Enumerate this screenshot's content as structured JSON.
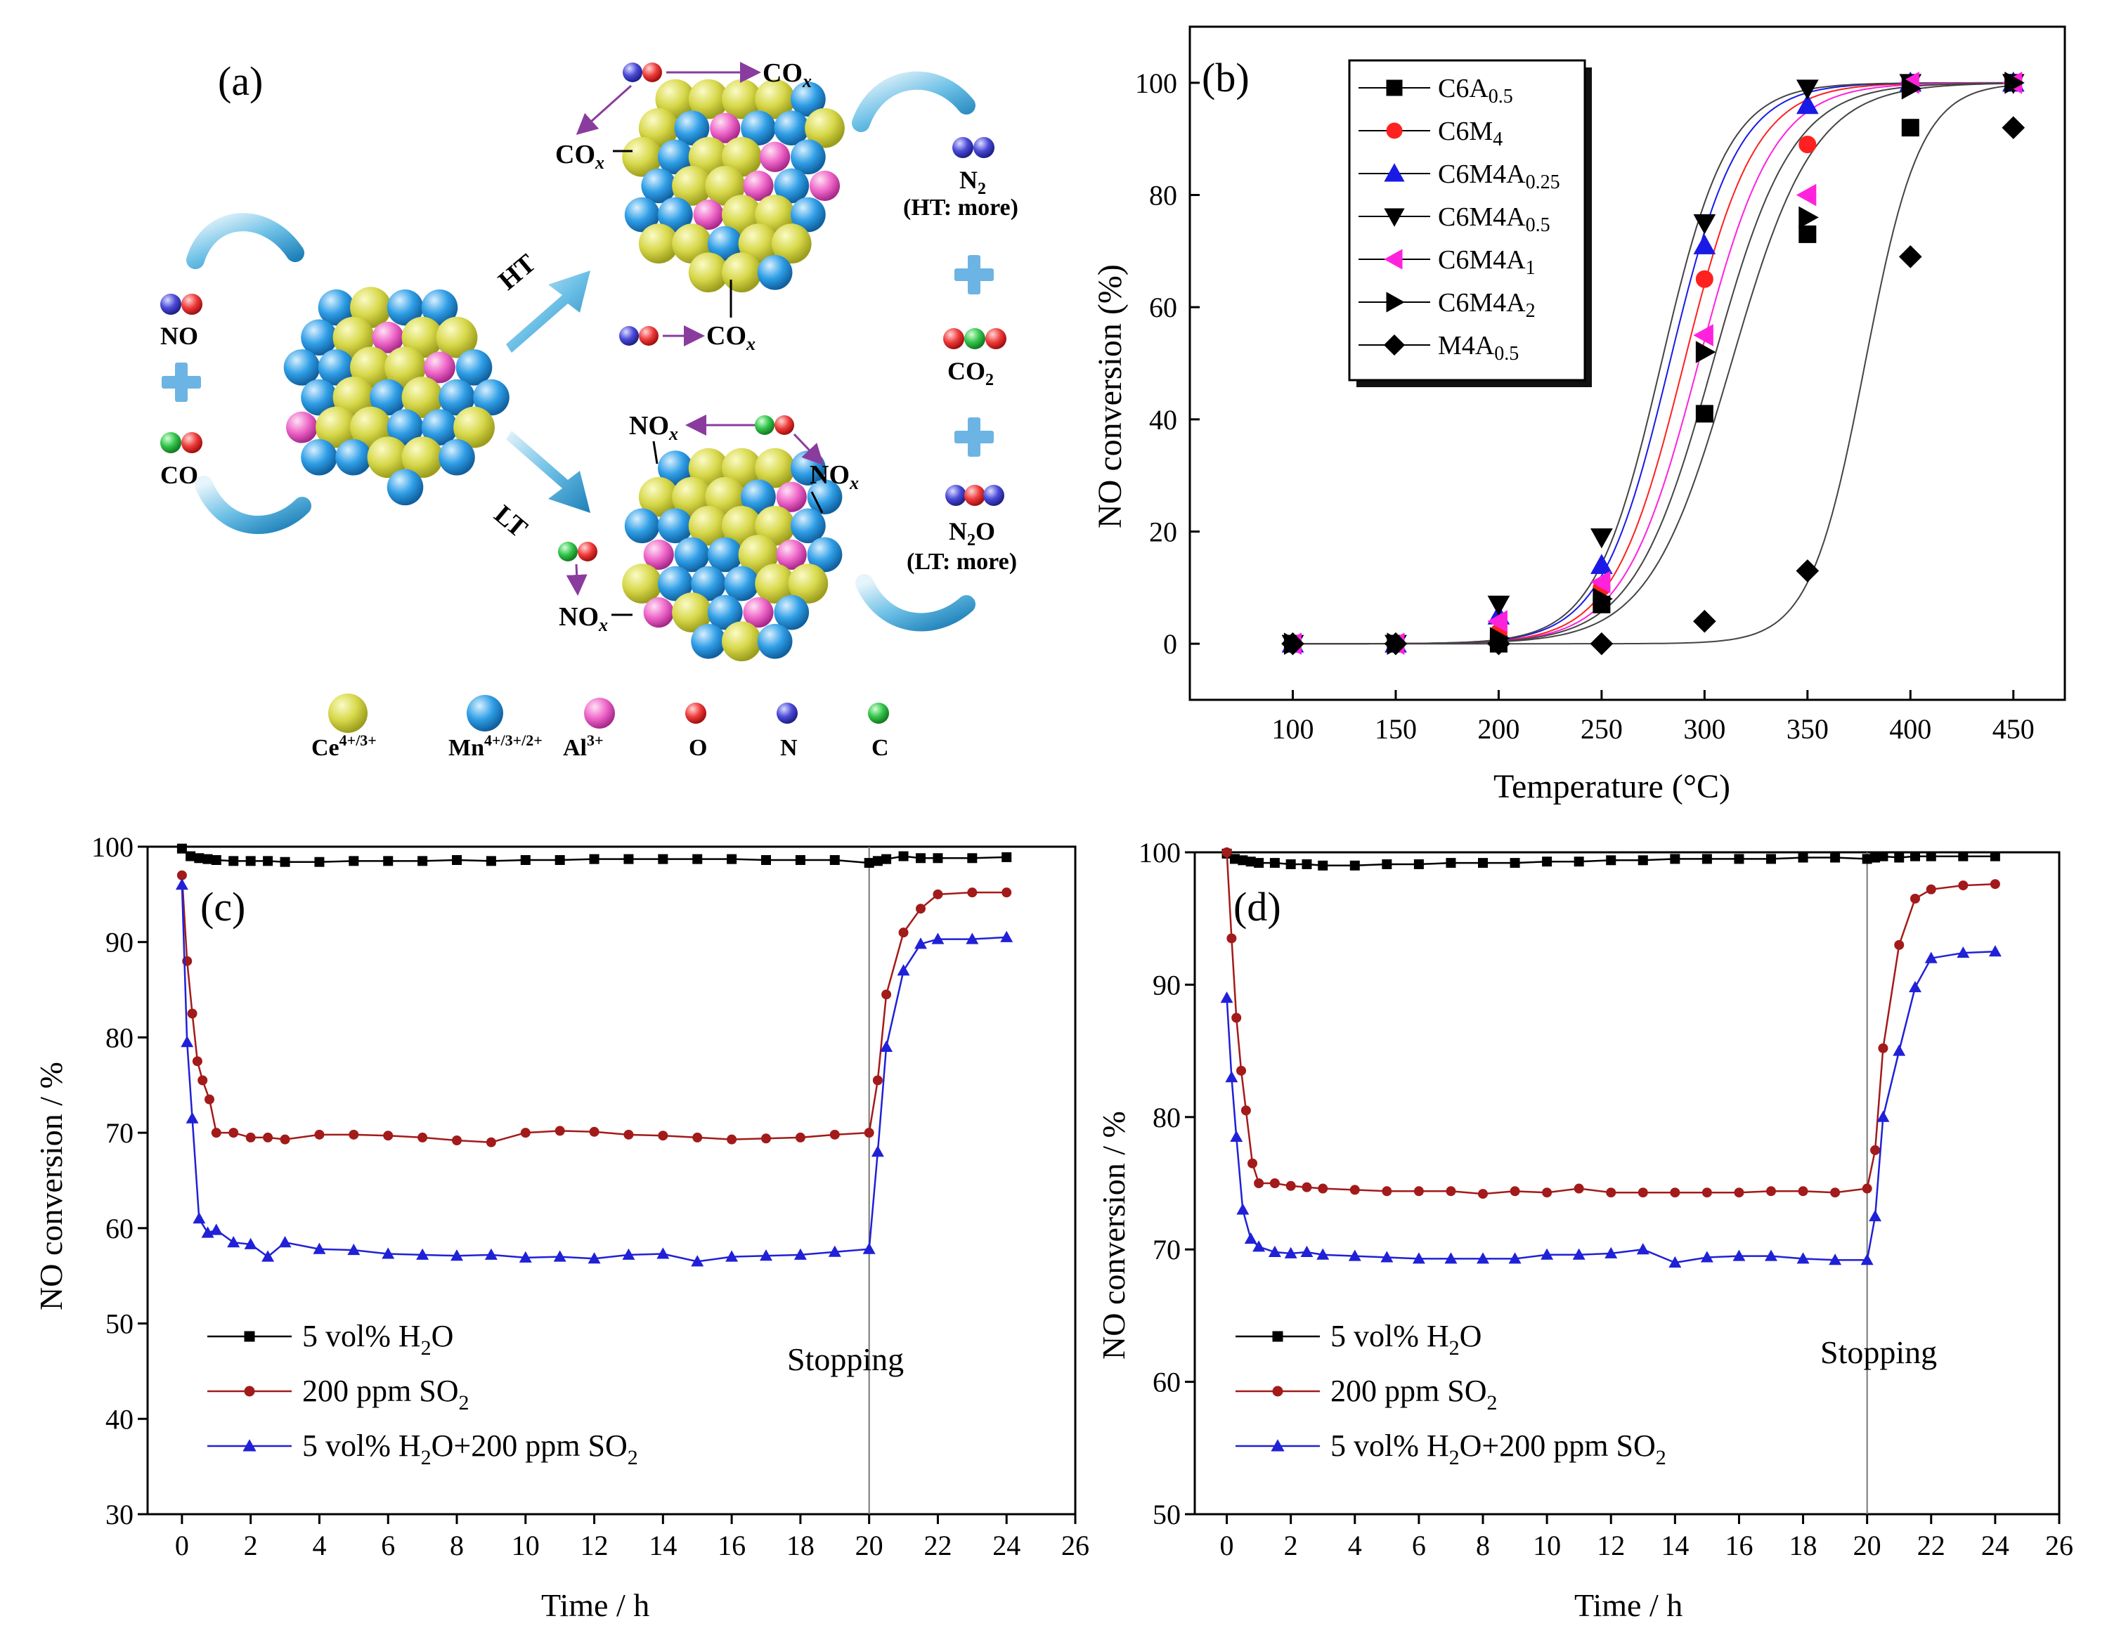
{
  "panel_a": {
    "label": "(a)",
    "reactants": {
      "no": "NO",
      "co": "CO"
    },
    "paths": {
      "ht": "HT",
      "lt": "LT"
    },
    "ht_products": {
      "cox": "CO",
      "sub": "x"
    },
    "lt_products": {
      "nox": "NO",
      "sub": "x"
    },
    "right": {
      "n2": "N",
      "n2_sub": "2",
      "n2_note": "(HT: more)",
      "co2": "CO",
      "co2_sub": "2",
      "n2o": "N",
      "n2o_sub": "2",
      "n2o_o": "O",
      "n2o_note": "(LT: more)"
    },
    "legend": [
      {
        "name": "Ce",
        "sup": "4+/3+",
        "color": "#d7d84a"
      },
      {
        "name": "Mn",
        "sup": "4+/3+/2+",
        "color": "#2f9ee6"
      },
      {
        "name": "Al",
        "sup": "3+",
        "color": "#ee66c8"
      },
      {
        "name": "O",
        "sup": "",
        "color": "#ef3b3b"
      },
      {
        "name": "N",
        "sup": "",
        "color": "#4a4ad8"
      },
      {
        "name": "C",
        "sup": "",
        "color": "#32c44a"
      }
    ]
  },
  "chart_data": [
    {
      "panel": "(b)",
      "type": "scatter",
      "title": "",
      "xlabel": "Temperature (°C)",
      "ylabel": "NO conversion (%)",
      "xlim": [
        50,
        475
      ],
      "ylim": [
        -10,
        110
      ],
      "xticks": [
        100,
        150,
        200,
        250,
        300,
        350,
        400,
        450
      ],
      "yticks": [
        0,
        20,
        40,
        60,
        80,
        100
      ],
      "x": [
        100,
        150,
        200,
        250,
        300,
        350,
        400,
        450
      ],
      "legend_position": "top-left",
      "series": [
        {
          "name": "C6A0.5",
          "label_main": "C6A",
          "label_sub": "0.5",
          "marker": "square",
          "color": "#000000",
          "values": [
            0,
            0,
            0,
            7,
            41,
            73,
            92,
            100
          ],
          "fit": {
            "T50": 313,
            "k": 0.05
          }
        },
        {
          "name": "C6M4",
          "label_main": "C6M",
          "label_sub": "4",
          "marker": "circle",
          "color": "#ff2020",
          "values": [
            0,
            0,
            2,
            10,
            65,
            89,
            100,
            100
          ],
          "fit": {
            "T50": 290,
            "k": 0.058
          }
        },
        {
          "name": "C6M4A0.25",
          "label_main": "C6M4A",
          "label_sub": "0.25",
          "marker": "triangle-up",
          "color": "#1a1ae6",
          "values": [
            0,
            0,
            5,
            14,
            71,
            96,
            100,
            100
          ],
          "fit": {
            "T50": 283,
            "k": 0.06
          }
        },
        {
          "name": "C6M4A0.5",
          "label_main": "C6M4A",
          "label_sub": "0.5",
          "marker": "triangle-down",
          "color": "#000000",
          "values": [
            0,
            0,
            7,
            19,
            75,
            99,
            100,
            100
          ],
          "fit": {
            "T50": 279,
            "k": 0.062
          }
        },
        {
          "name": "C6M4A1",
          "label_main": "C6M4A",
          "label_sub": "1",
          "marker": "triangle-left",
          "color": "#ff22dd",
          "values": [
            0,
            0,
            4,
            11,
            55,
            80,
            100,
            100
          ],
          "fit": {
            "T50": 297,
            "k": 0.055
          }
        },
        {
          "name": "C6M4A2",
          "label_main": "C6M4A",
          "label_sub": "2",
          "marker": "triangle-right",
          "color": "#000000",
          "values": [
            0,
            0,
            1,
            8,
            52,
            76,
            99,
            100
          ],
          "fit": {
            "T50": 304,
            "k": 0.052
          }
        },
        {
          "name": "M4A0.5",
          "label_main": "M4A",
          "label_sub": "0.5",
          "marker": "diamond",
          "color": "#000000",
          "values": [
            0,
            0,
            0,
            0,
            4,
            13,
            69,
            92
          ],
          "fit": {
            "T50": 378,
            "k": 0.075
          }
        }
      ]
    },
    {
      "panel": "(c)",
      "type": "line",
      "title": "",
      "xlabel": "Time / h",
      "ylabel": "NO conversion / %",
      "xlim": [
        -1,
        26
      ],
      "ylim": [
        30,
        100
      ],
      "xticks": [
        0,
        2,
        4,
        6,
        8,
        10,
        12,
        14,
        16,
        18,
        20,
        22,
        24,
        26
      ],
      "yticks": [
        30,
        40,
        50,
        60,
        70,
        80,
        90,
        100
      ],
      "stop_time": 20,
      "annotation": "Stopping",
      "legend_position": "bottom-left",
      "series": [
        {
          "name": "5 vol% H2O",
          "label": [
            "5 vol% H",
            "2",
            "O"
          ],
          "marker": "square",
          "color": "#000000",
          "x": [
            0,
            0.25,
            0.5,
            0.75,
            1,
            1.5,
            2,
            2.5,
            3,
            4,
            5,
            6,
            7,
            8,
            9,
            10,
            11,
            12,
            13,
            14,
            15,
            16,
            17,
            18,
            19,
            20,
            20.25,
            20.5,
            21,
            21.5,
            22,
            23,
            24
          ],
          "values": [
            99.8,
            99,
            98.8,
            98.7,
            98.6,
            98.5,
            98.5,
            98.5,
            98.4,
            98.4,
            98.5,
            98.5,
            98.5,
            98.6,
            98.5,
            98.6,
            98.6,
            98.7,
            98.7,
            98.7,
            98.7,
            98.7,
            98.6,
            98.6,
            98.6,
            98.3,
            98.5,
            98.7,
            99,
            98.8,
            98.8,
            98.8,
            98.9
          ]
        },
        {
          "name": "200 ppm SO2",
          "label": [
            "200 ppm SO",
            "2",
            ""
          ],
          "marker": "circle",
          "color": "#a31a1a",
          "x": [
            0,
            0.15,
            0.3,
            0.45,
            0.6,
            0.8,
            1,
            1.5,
            2,
            2.5,
            3,
            4,
            5,
            6,
            7,
            8,
            9,
            10,
            11,
            12,
            13,
            14,
            15,
            16,
            17,
            18,
            19,
            20,
            20.25,
            20.5,
            21,
            21.5,
            22,
            23,
            24
          ],
          "values": [
            97,
            88,
            82.5,
            77.5,
            75.5,
            73.5,
            70,
            70,
            69.5,
            69.5,
            69.3,
            69.8,
            69.8,
            69.7,
            69.5,
            69.2,
            69.0,
            70,
            70.2,
            70.1,
            69.8,
            69.7,
            69.5,
            69.3,
            69.4,
            69.5,
            69.8,
            70,
            75.5,
            84.5,
            91,
            93.5,
            95,
            95.2,
            95.2
          ]
        },
        {
          "name": "5 vol% H2O+200 ppm SO2",
          "label": [
            "5 vol% H",
            "2",
            "O+200 ppm SO",
            "2"
          ],
          "marker": "triangle-up",
          "color": "#2020d8",
          "x": [
            0,
            0.15,
            0.3,
            0.5,
            0.75,
            1,
            1.5,
            2,
            2.5,
            3,
            4,
            5,
            6,
            7,
            8,
            9,
            10,
            11,
            12,
            13,
            14,
            15,
            16,
            17,
            18,
            19,
            20,
            20.25,
            20.5,
            21,
            21.5,
            22,
            23,
            24
          ],
          "values": [
            96,
            79.5,
            71.5,
            61,
            59.5,
            59.8,
            58.5,
            58.3,
            57,
            58.5,
            57.8,
            57.7,
            57.3,
            57.2,
            57.1,
            57.2,
            56.9,
            57.0,
            56.8,
            57.2,
            57.3,
            56.5,
            57.0,
            57.1,
            57.2,
            57.5,
            57.8,
            68,
            79,
            87,
            89.8,
            90.3,
            90.3,
            90.5
          ]
        }
      ]
    },
    {
      "panel": "(d)",
      "type": "line",
      "title": "",
      "xlabel": "Time / h",
      "ylabel": "NO conversion / %",
      "xlim": [
        -1,
        26
      ],
      "ylim": [
        50,
        100
      ],
      "xticks": [
        0,
        2,
        4,
        6,
        8,
        10,
        12,
        14,
        16,
        18,
        20,
        22,
        24,
        26
      ],
      "yticks": [
        50,
        60,
        70,
        80,
        90,
        100
      ],
      "stop_time": 20,
      "annotation": "Stopping",
      "legend_position": "bottom-left",
      "series": [
        {
          "name": "5 vol% H2O",
          "label": [
            "5 vol% H",
            "2",
            "O"
          ],
          "marker": "square",
          "color": "#000000",
          "x": [
            0,
            0.25,
            0.5,
            0.75,
            1,
            1.5,
            2,
            2.5,
            3,
            4,
            5,
            6,
            7,
            8,
            9,
            10,
            11,
            12,
            13,
            14,
            15,
            16,
            17,
            18,
            19,
            20,
            20.25,
            20.5,
            21,
            21.5,
            22,
            23,
            24
          ],
          "values": [
            99.9,
            99.5,
            99.4,
            99.3,
            99.2,
            99.2,
            99.1,
            99.1,
            99.0,
            99.0,
            99.1,
            99.1,
            99.2,
            99.2,
            99.2,
            99.3,
            99.3,
            99.4,
            99.4,
            99.5,
            99.5,
            99.5,
            99.5,
            99.6,
            99.6,
            99.5,
            99.6,
            99.7,
            99.6,
            99.7,
            99.7,
            99.7,
            99.7
          ]
        },
        {
          "name": "200 ppm SO2",
          "label": [
            "200 ppm SO",
            "2",
            ""
          ],
          "marker": "circle",
          "color": "#a31a1a",
          "x": [
            0,
            0.15,
            0.3,
            0.45,
            0.6,
            0.8,
            1,
            1.5,
            2,
            2.5,
            3,
            4,
            5,
            6,
            7,
            8,
            9,
            10,
            11,
            12,
            13,
            14,
            15,
            16,
            17,
            18,
            19,
            20,
            20.25,
            20.5,
            21,
            21.5,
            22,
            23,
            24
          ],
          "values": [
            100,
            93.5,
            87.5,
            83.5,
            80.5,
            76.5,
            75,
            75,
            74.8,
            74.7,
            74.6,
            74.5,
            74.4,
            74.4,
            74.4,
            74.2,
            74.4,
            74.3,
            74.6,
            74.3,
            74.3,
            74.3,
            74.3,
            74.3,
            74.4,
            74.4,
            74.3,
            74.6,
            77.5,
            85.2,
            93,
            96.5,
            97.2,
            97.5,
            97.6
          ]
        },
        {
          "name": "5 vol% H2O+200 ppm SO2",
          "label": [
            "5 vol% H",
            "2",
            "O+200 ppm SO",
            "2"
          ],
          "marker": "triangle-up",
          "color": "#2020d8",
          "x": [
            0,
            0.15,
            0.3,
            0.5,
            0.75,
            1,
            1.5,
            2,
            2.5,
            3,
            4,
            5,
            6,
            7,
            8,
            9,
            10,
            11,
            12,
            13,
            14,
            15,
            16,
            17,
            18,
            19,
            20,
            20.25,
            20.5,
            21,
            21.5,
            22,
            23,
            24
          ],
          "values": [
            89,
            83,
            78.5,
            73,
            70.8,
            70.2,
            69.8,
            69.7,
            69.8,
            69.6,
            69.5,
            69.4,
            69.3,
            69.3,
            69.3,
            69.3,
            69.6,
            69.6,
            69.7,
            70.0,
            69.0,
            69.4,
            69.5,
            69.5,
            69.3,
            69.2,
            69.2,
            72.5,
            80,
            85,
            89.8,
            92,
            92.4,
            92.5
          ]
        }
      ]
    }
  ]
}
